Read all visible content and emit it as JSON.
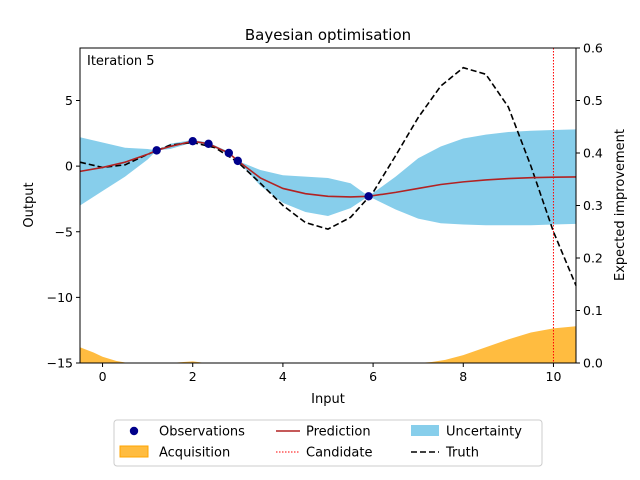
{
  "chart_data": {
    "type": "line",
    "title": "Bayesian optimisation",
    "annotation": "Iteration 5",
    "xlabel": "Input",
    "ylabel": "Output",
    "y2label": "Expected improvement",
    "xlim": [
      -0.5,
      10.5
    ],
    "ylim": [
      -15,
      9
    ],
    "y2lim": [
      0.0,
      0.6
    ],
    "xticks": [
      0,
      2,
      4,
      6,
      8,
      10
    ],
    "yticks": [
      -15,
      -10,
      -5,
      0,
      5
    ],
    "y2ticks": [
      0.0,
      0.1,
      0.2,
      0.3,
      0.4,
      0.5,
      0.6
    ],
    "y2ticklabels": [
      "0.0",
      "0.1",
      "0.2",
      "0.3",
      "0.4",
      "0.5",
      "0.6"
    ],
    "colors": {
      "observations": "#00008b",
      "prediction": "#b22222",
      "candidate": "#ff0000",
      "uncertainty": "#87ceeb",
      "acquisition": "#ffa500",
      "truth": "#000000"
    },
    "series": {
      "observations": {
        "name": "Observations",
        "x": [
          1.2,
          2.0,
          2.35,
          2.8,
          3.0,
          5.9
        ],
        "y": [
          1.2,
          1.9,
          1.7,
          1.0,
          0.4,
          -2.3
        ]
      },
      "prediction": {
        "name": "Prediction",
        "x": [
          -0.5,
          0.0,
          0.5,
          1.0,
          1.2,
          1.5,
          2.0,
          2.35,
          2.8,
          3.0,
          3.5,
          4.0,
          4.5,
          5.0,
          5.5,
          5.9,
          6.5,
          7.0,
          7.5,
          8.0,
          8.5,
          9.0,
          9.5,
          10.0,
          10.5
        ],
        "y": [
          -0.4,
          -0.1,
          0.3,
          0.9,
          1.2,
          1.5,
          1.9,
          1.7,
          1.0,
          0.4,
          -0.9,
          -1.7,
          -2.1,
          -2.3,
          -2.35,
          -2.3,
          -2.0,
          -1.7,
          -1.4,
          -1.2,
          -1.05,
          -0.95,
          -0.88,
          -0.84,
          -0.82
        ]
      },
      "uncertainty": {
        "name": "Uncertainty",
        "x": [
          -0.5,
          0.0,
          0.5,
          1.0,
          1.2,
          1.5,
          2.0,
          2.35,
          2.8,
          3.0,
          3.5,
          4.0,
          4.5,
          5.0,
          5.5,
          5.9,
          6.5,
          7.0,
          7.5,
          8.0,
          8.5,
          9.0,
          9.5,
          10.0,
          10.5
        ],
        "lower": [
          -3.0,
          -1.9,
          -0.8,
          0.5,
          1.2,
          1.3,
          1.8,
          1.6,
          0.9,
          0.4,
          -1.5,
          -2.8,
          -3.5,
          -3.8,
          -3.2,
          -2.3,
          -3.3,
          -4.0,
          -4.35,
          -4.45,
          -4.5,
          -4.5,
          -4.5,
          -4.45,
          -4.4
        ],
        "upper": [
          2.2,
          1.8,
          1.4,
          1.3,
          1.2,
          1.7,
          2.0,
          1.8,
          1.1,
          0.4,
          -0.3,
          -0.7,
          -0.8,
          -0.9,
          -1.3,
          -2.3,
          -0.8,
          0.6,
          1.5,
          2.1,
          2.4,
          2.6,
          2.7,
          2.75,
          2.8
        ]
      },
      "truth": {
        "name": "Truth",
        "x": [
          -0.5,
          0.0,
          0.5,
          1.0,
          1.5,
          2.0,
          2.5,
          3.0,
          3.5,
          4.0,
          4.5,
          5.0,
          5.5,
          6.0,
          6.5,
          7.0,
          7.5,
          8.0,
          8.5,
          9.0,
          9.5,
          10.0,
          10.5
        ],
        "y": [
          0.3,
          -0.1,
          0.1,
          0.9,
          1.6,
          1.8,
          1.4,
          0.3,
          -1.3,
          -3.0,
          -4.3,
          -4.8,
          -3.9,
          -2.0,
          0.8,
          3.7,
          6.1,
          7.5,
          7.0,
          4.5,
          0.0,
          -5.0,
          -9.1
        ]
      },
      "acquisition": {
        "name": "Acquisition",
        "x": [
          -0.5,
          -0.2,
          0.0,
          0.3,
          0.5,
          1.0,
          1.5,
          1.8,
          2.0,
          2.2,
          2.5,
          3.0,
          4.0,
          5.0,
          6.0,
          7.0,
          7.3,
          7.6,
          8.0,
          8.5,
          9.0,
          9.5,
          10.0,
          10.5
        ],
        "y": [
          0.03,
          0.02,
          0.012,
          0.004,
          0.001,
          0.0,
          0.0,
          0.002,
          0.003,
          0.001,
          0.0,
          0.0,
          0.0,
          0.0,
          0.0,
          0.0,
          0.002,
          0.006,
          0.015,
          0.03,
          0.045,
          0.058,
          0.066,
          0.07
        ]
      },
      "candidate": {
        "name": "Candidate",
        "x": 10.0
      }
    },
    "legend": {
      "placement": "bottom-center",
      "items": [
        "Observations",
        "Acquisition",
        "Prediction",
        "Candidate",
        "Uncertainty",
        "Truth"
      ]
    }
  }
}
